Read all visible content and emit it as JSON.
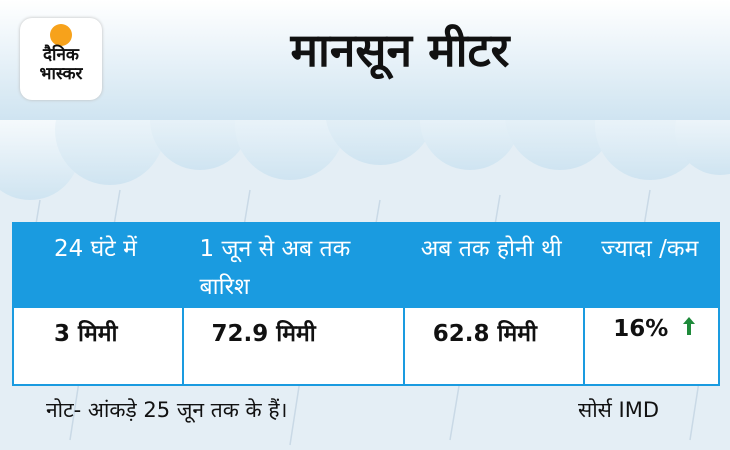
{
  "logo": {
    "line1": "दैनिक",
    "line2": "भास्कर"
  },
  "header": {
    "title": "मानसून मीटर"
  },
  "table": {
    "headers": [
      "24 घंटे में",
      "1 जून से अब तक बारिश",
      "अब तक होनी थी",
      "ज्यादा /कम"
    ],
    "rows": [
      [
        "3 मिमी",
        "72.9 मिमी",
        "62.8 मिमी",
        "16%"
      ]
    ]
  },
  "footer": {
    "note": "नोट- आंकड़े 25 जून तक के हैं।",
    "source": "सोर्स IMD"
  }
}
